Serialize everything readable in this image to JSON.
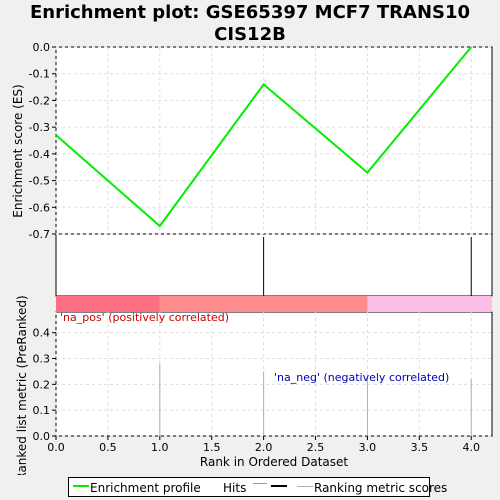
{
  "title_line1": "Enrichment plot: GSE65397 MCF7 TRANS10",
  "title_line2": "CIS12B",
  "chart_data": {
    "type": "line",
    "x": [
      0,
      1,
      2,
      3,
      4
    ],
    "es": [
      -0.33,
      -0.67,
      -0.14,
      -0.47,
      0.0
    ],
    "hits": [
      2,
      4
    ],
    "ranking_metric": [
      0.28,
      0.25,
      0.23,
      0.22
    ],
    "ranking_x": [
      1,
      2,
      3,
      4
    ],
    "es_ylim": [
      -0.7,
      0.0
    ],
    "rank_ylim": [
      0.0,
      0.48
    ],
    "xlim": [
      0,
      4.2
    ],
    "x_ticks": [
      "0.0",
      "0.5",
      "1.0",
      "1.5",
      "2.0",
      "2.5",
      "3.0",
      "3.5",
      "4.0"
    ],
    "es_ticks": [
      "0.0",
      "-0.1",
      "-0.2",
      "-0.3",
      "-0.4",
      "-0.5",
      "-0.6",
      "-0.7"
    ],
    "rank_ticks": [
      "0.0",
      "0.1",
      "0.2",
      "0.3",
      "0.4"
    ],
    "xlabel": "Rank in Ordered Dataset",
    "ylabel_top": "Enrichment score (ES)",
    "ylabel_bottom": "Ranked list metric (PreRanked)",
    "annotation_pos": "'na_pos' (positively correlated)",
    "annotation_neg": "'na_neg' (negatively correlated)",
    "heatmap_segments": [
      {
        "from": 0,
        "to": 1,
        "color": "#ff6f84"
      },
      {
        "from": 1,
        "to": 3,
        "color": "#ff8c8c"
      },
      {
        "from": 3,
        "to": 4.2,
        "color": "#fcbee6"
      }
    ],
    "colors": {
      "es_line": "#00ee00",
      "hits": "#000000",
      "ranking": "#b0b0b0",
      "pos_text": "#cc0000",
      "neg_text": "#0000bb"
    }
  },
  "legend": {
    "enrichment_label": "Enrichment profile",
    "hits_label": "Hits",
    "ranking_label": "Ranking metric scores"
  }
}
